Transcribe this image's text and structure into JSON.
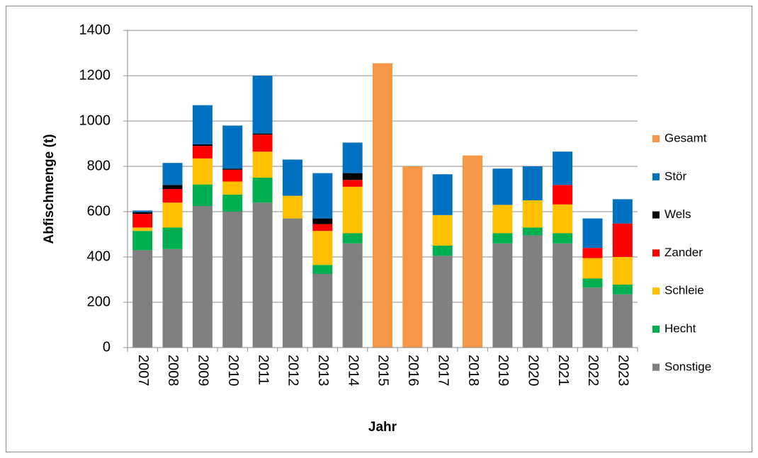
{
  "chart_data": {
    "type": "bar",
    "stacked": true,
    "x_label": "Jahr",
    "y_label": "Abfischmenge (t)",
    "categories": [
      "2007",
      "2008",
      "2009",
      "2010",
      "2011",
      "2012",
      "2013",
      "2014",
      "2015",
      "2016",
      "2017",
      "2018",
      "2019",
      "2020",
      "2021",
      "2022",
      "2023"
    ],
    "ylim": [
      0,
      1400
    ],
    "yticks": [
      0,
      200,
      400,
      600,
      800,
      1000,
      1200,
      1400
    ],
    "grid": true,
    "legend": "right",
    "series": [
      {
        "name": "Sonstige",
        "color": "#808080",
        "values": [
          430,
          435,
          625,
          600,
          640,
          570,
          325,
          460,
          null,
          null,
          405,
          null,
          460,
          495,
          460,
          265,
          235
        ]
      },
      {
        "name": "Hecht",
        "color": "#00b050",
        "values": [
          85,
          95,
          95,
          75,
          110,
          null,
          40,
          45,
          null,
          null,
          45,
          null,
          45,
          35,
          45,
          40,
          43
        ]
      },
      {
        "name": "Schleie",
        "color": "#ffc000",
        "values": [
          15,
          110,
          115,
          58,
          115,
          100,
          150,
          205,
          null,
          null,
          135,
          null,
          125,
          120,
          127,
          90,
          122
        ]
      },
      {
        "name": "Zander",
        "color": "#ff0000",
        "values": [
          60,
          60,
          55,
          52,
          75,
          null,
          30,
          30,
          null,
          null,
          null,
          null,
          null,
          null,
          86,
          45,
          148
        ]
      },
      {
        "name": "Wels",
        "color": "#000000",
        "values": [
          8,
          18,
          7,
          5,
          5,
          null,
          25,
          30,
          null,
          null,
          null,
          null,
          null,
          null,
          null,
          null,
          null
        ]
      },
      {
        "name": "Stör",
        "color": "#0070c0",
        "values": [
          7,
          97,
          173,
          190,
          255,
          160,
          200,
          135,
          null,
          null,
          180,
          null,
          160,
          150,
          147,
          130,
          107
        ]
      },
      {
        "name": "Gesamt",
        "color": "#f79646",
        "values": [
          null,
          null,
          null,
          null,
          null,
          null,
          null,
          null,
          1255,
          800,
          null,
          848,
          null,
          null,
          null,
          null,
          null
        ]
      }
    ]
  }
}
